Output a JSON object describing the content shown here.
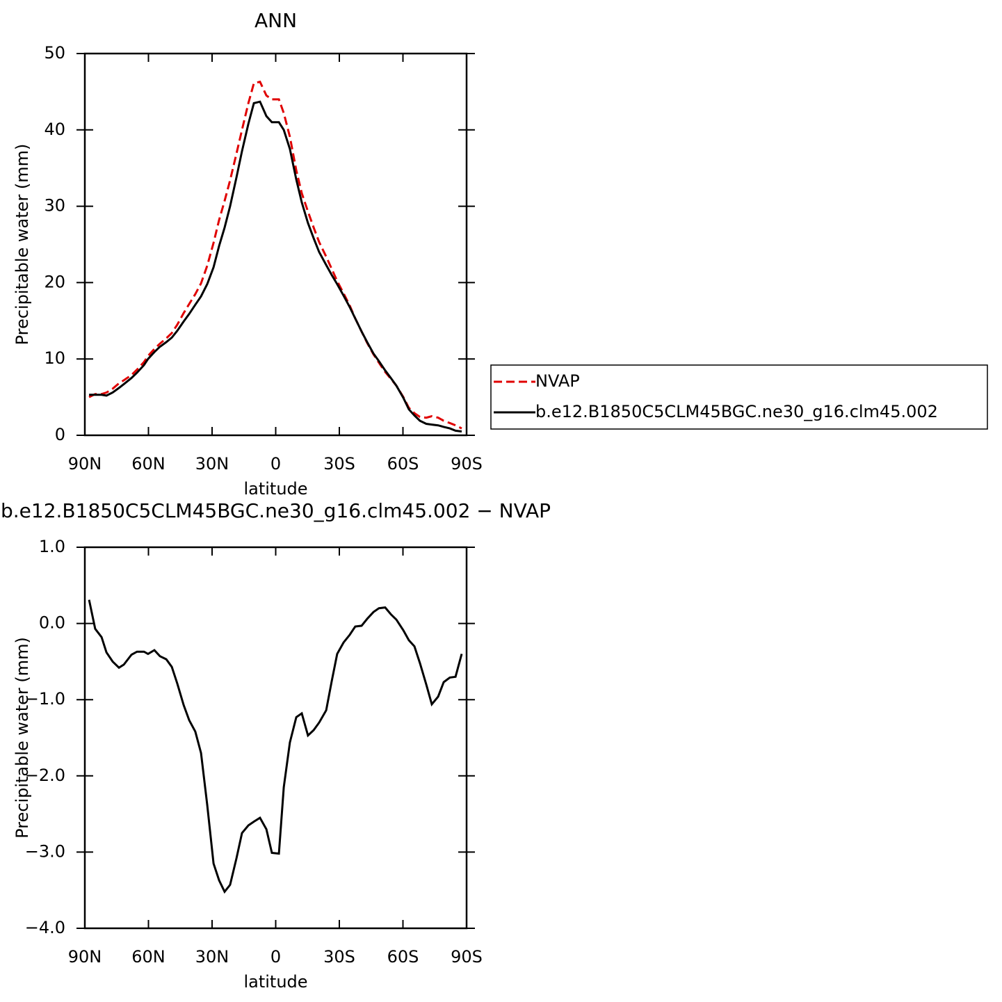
{
  "chart_data": [
    {
      "type": "line",
      "title": "ANN",
      "xlabel": "latitude",
      "ylabel": "Precipitable water (mm)",
      "x": [
        88,
        85.1,
        82.1,
        79.8,
        76.9,
        73.9,
        71.6,
        68,
        65.4,
        62.1,
        60.2,
        57.2,
        54.6,
        51.6,
        49,
        46.4,
        43.4,
        40.8,
        37.9,
        35.2,
        32.3,
        29.3,
        26.7,
        24.1,
        21.5,
        18.5,
        15.9,
        12.9,
        10.3,
        7.4,
        4.4,
        1.8,
        -1.5,
        -3.8,
        -6.7,
        -9.7,
        -12.3,
        -15.2,
        -17.9,
        -20.5,
        -23.8,
        -26.4,
        -29,
        -32,
        -34.9,
        -37.5,
        -40.5,
        -43.1,
        -46.1,
        -48.7,
        -51.6,
        -54.3,
        -56.9,
        -60.2,
        -62.8,
        -65.4,
        -68,
        -71,
        -73.6,
        -76.6,
        -79.2,
        -82.1,
        -84.8,
        -87.7
      ],
      "xlim": [
        90,
        -90
      ],
      "xticks": [
        {
          "value": 90,
          "label": "90N"
        },
        {
          "value": 60,
          "label": "60N"
        },
        {
          "value": 30,
          "label": "30N"
        },
        0,
        {
          "value": -30,
          "label": "30S"
        },
        {
          "value": -60,
          "label": "60S"
        },
        {
          "value": -90,
          "label": "90S"
        }
      ],
      "ylim": [
        0,
        50
      ],
      "yticks": [
        0,
        10,
        20,
        30,
        40,
        50
      ],
      "legend": "right",
      "series": [
        {
          "name": "NVAP",
          "color": "#e00000",
          "linestyle": "dashed",
          "values": [
            5.0,
            5.4,
            5.4,
            5.6,
            6.1,
            6.8,
            7.2,
            7.9,
            8.6,
            9.6,
            10.4,
            11.3,
            12.0,
            12.7,
            13.4,
            14.5,
            16.0,
            17.2,
            18.5,
            19.9,
            22.2,
            25.2,
            28.2,
            30.7,
            33.4,
            36.9,
            40.0,
            43.5,
            46.1,
            46.3,
            44.5,
            44.0,
            44.0,
            42.2,
            39.1,
            34.7,
            31.7,
            29.3,
            27.2,
            25.3,
            23.4,
            21.8,
            20.2,
            18.6,
            17.0,
            15.3,
            13.6,
            12.1,
            10.6,
            9.5,
            8.3,
            7.4,
            6.5,
            5.0,
            3.6,
            2.9,
            2.4,
            2.3,
            2.5,
            2.3,
            1.9,
            1.6,
            1.3,
            0.9
          ]
        },
        {
          "name": "b.e12.B1850C5CLM45BGC.ne30_g16.clm45.002",
          "color": "#000000",
          "linestyle": "solid",
          "values": [
            5.3,
            5.3,
            5.3,
            5.2,
            5.6,
            6.2,
            6.7,
            7.5,
            8.2,
            9.2,
            10.0,
            10.9,
            11.6,
            12.2,
            12.8,
            13.7,
            14.9,
            15.9,
            17.1,
            18.2,
            19.8,
            22.0,
            24.8,
            27.2,
            30.0,
            33.8,
            37.2,
            40.8,
            43.5,
            43.7,
            41.8,
            41.0,
            41.0,
            40.0,
            37.5,
            33.5,
            30.5,
            27.8,
            25.8,
            24.0,
            22.3,
            21.0,
            19.8,
            18.3,
            16.8,
            15.3,
            13.6,
            12.2,
            10.7,
            9.7,
            8.5,
            7.5,
            6.5,
            4.9,
            3.4,
            2.6,
            1.9,
            1.5,
            1.4,
            1.3,
            1.1,
            0.9,
            0.6,
            0.5
          ]
        }
      ]
    },
    {
      "type": "line",
      "title": "b.e12.B1850C5CLM45BGC.ne30_g16.clm45.002 − NVAP",
      "xlabel": "latitude",
      "ylabel": "Precipitable water (mm)",
      "x": [
        88,
        85.1,
        82.1,
        79.8,
        76.9,
        73.9,
        71.6,
        68,
        65.4,
        62.1,
        60.2,
        57.2,
        54.6,
        51.6,
        49,
        46.4,
        43.4,
        40.8,
        37.9,
        35.2,
        32.3,
        29.3,
        26.7,
        24.1,
        21.5,
        18.5,
        15.9,
        12.9,
        10.3,
        7.4,
        4.4,
        1.8,
        -1.5,
        -3.8,
        -6.7,
        -9.7,
        -12.3,
        -15.2,
        -17.9,
        -20.5,
        -23.8,
        -26.4,
        -29,
        -32,
        -34.9,
        -37.5,
        -40.5,
        -43.1,
        -46.1,
        -48.7,
        -51.6,
        -54.3,
        -56.9,
        -60.2,
        -62.8,
        -65.4,
        -68,
        -71,
        -73.6,
        -76.6,
        -79.2,
        -82.1,
        -84.8,
        -87.7
      ],
      "xlim": [
        90,
        -90
      ],
      "xticks": [
        {
          "value": 90,
          "label": "90N"
        },
        {
          "value": 60,
          "label": "60N"
        },
        {
          "value": 30,
          "label": "30N"
        },
        0,
        {
          "value": -30,
          "label": "30S"
        },
        {
          "value": -60,
          "label": "60S"
        },
        {
          "value": -90,
          "label": "90S"
        }
      ],
      "ylim": [
        -4,
        1
      ],
      "yticks": [
        {
          "value": -4,
          "label": "−4.0"
        },
        {
          "value": -3,
          "label": "−3.0"
        },
        {
          "value": -2,
          "label": "−2.0"
        },
        {
          "value": -1,
          "label": "−1.0"
        },
        {
          "value": 0,
          "label": "0.0"
        },
        {
          "value": 1,
          "label": "1.0"
        }
      ],
      "color": "#000000",
      "values": [
        0.31,
        -0.07,
        -0.18,
        -0.38,
        -0.5,
        -0.58,
        -0.54,
        -0.41,
        -0.37,
        -0.37,
        -0.4,
        -0.35,
        -0.43,
        -0.47,
        -0.57,
        -0.79,
        -1.07,
        -1.27,
        -1.42,
        -1.7,
        -2.38,
        -3.15,
        -3.37,
        -3.52,
        -3.43,
        -3.08,
        -2.75,
        -2.65,
        -2.6,
        -2.55,
        -2.7,
        -3.01,
        -3.02,
        -2.15,
        -1.56,
        -1.23,
        -1.18,
        -1.47,
        -1.4,
        -1.3,
        -1.14,
        -0.76,
        -0.4,
        -0.25,
        -0.15,
        -0.04,
        -0.03,
        0.06,
        0.15,
        0.2,
        0.21,
        0.12,
        0.05,
        -0.09,
        -0.22,
        -0.3,
        -0.52,
        -0.8,
        -1.06,
        -0.96,
        -0.77,
        -0.71,
        -0.7,
        -0.4
      ]
    }
  ]
}
